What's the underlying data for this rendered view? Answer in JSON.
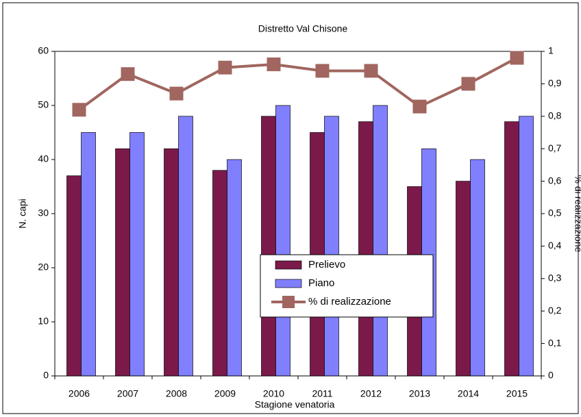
{
  "chart_data": {
    "type": "bar",
    "title": "Distretto Val Chisone",
    "x_label": "Stagione venatoria",
    "y_label": "N. capi",
    "y2_label": "% di realizzazione",
    "categories": [
      "2006",
      "2007",
      "2008",
      "2009",
      "2010",
      "2011",
      "2012",
      "2013",
      "2014",
      "2015"
    ],
    "series": [
      {
        "name": "Prelievo",
        "color": "#7b1a4a",
        "values": [
          37,
          42,
          42,
          38,
          48,
          45,
          47,
          35,
          36,
          47
        ]
      },
      {
        "name": "Piano",
        "color": "#8080ff",
        "values": [
          45,
          45,
          48,
          40,
          50,
          48,
          50,
          42,
          40,
          48
        ]
      },
      {
        "name": "% di realizzazione",
        "color": "#a0665f",
        "type": "line",
        "axis": "y2",
        "values": [
          0.82,
          0.93,
          0.87,
          0.95,
          0.96,
          0.94,
          0.94,
          0.83,
          0.9,
          0.98
        ]
      }
    ],
    "ylim": [
      0,
      60
    ],
    "yticks": [
      0,
      10,
      20,
      30,
      40,
      50,
      60
    ],
    "y2lim": [
      0,
      1
    ],
    "y2ticks": [
      0,
      {
        "value": 0.1,
        "label": "0,1"
      },
      {
        "value": 0.2,
        "label": "0,2"
      },
      {
        "value": 0.3,
        "label": "0,3"
      },
      {
        "value": 0.4,
        "label": "0,4"
      },
      {
        "value": 0.5,
        "label": "0,5"
      },
      {
        "value": 0.6,
        "label": "0,6"
      },
      {
        "value": 0.7,
        "label": "0,7"
      },
      {
        "value": 0.8,
        "label": "0,8"
      },
      {
        "value": 0.9,
        "label": "0,9"
      },
      1
    ],
    "legend": "center"
  }
}
